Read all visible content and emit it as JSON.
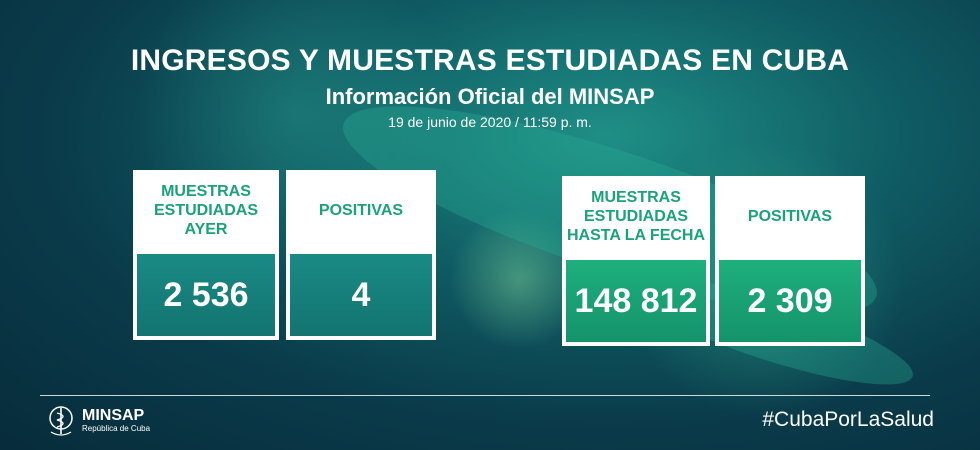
{
  "header": {
    "title": "INGRESOS Y MUESTRAS ESTUDIADAS EN CUBA",
    "subtitle": "Información Oficial del MINSAP",
    "date": "19 de junio de 2020 / 11:59 p. m."
  },
  "cards": [
    {
      "label": "MUESTRAS\nESTUDIADAS\nAYER",
      "value": "2 536"
    },
    {
      "label": "POSITIVAS",
      "value": "4"
    },
    {
      "label": "MUESTRAS\nESTUDIADAS\nHASTA LA FECHA",
      "value": "148 812"
    },
    {
      "label": "POSITIVAS",
      "value": "2 309"
    }
  ],
  "footer": {
    "logo_name": "MINSAP",
    "logo_sub": "República de Cuba",
    "hashtag": "#CubaPorLaSalud"
  },
  "colors": {
    "card_label": "#1aa37a",
    "left_value_bg": "#137470",
    "right_value_bg": "#1faf7d",
    "background": "#0a3b4a"
  },
  "icons": {
    "logo": "minsap-caduceus-icon"
  }
}
